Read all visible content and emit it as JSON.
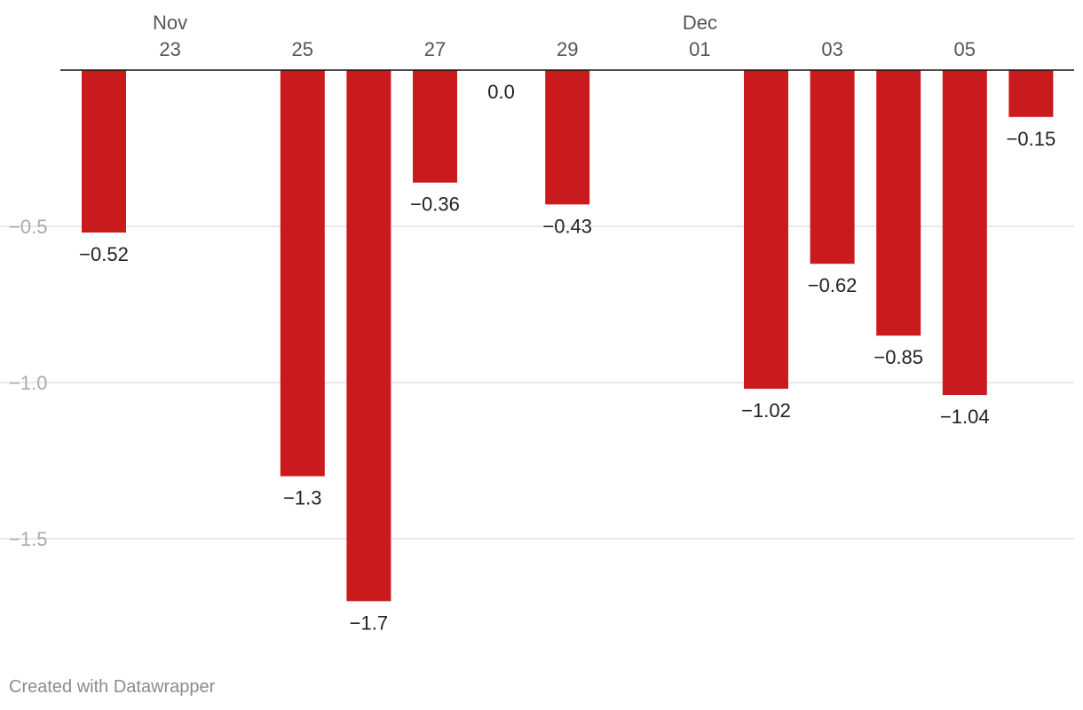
{
  "chart_data": {
    "type": "bar",
    "categories": [
      "Nov 22",
      "Nov 23",
      "Nov 24",
      "Nov 25",
      "Nov 26",
      "Nov 27",
      "Nov 28",
      "Nov 29",
      "Nov 30",
      "Dec 01",
      "Dec 02",
      "Dec 03",
      "Dec 04",
      "Dec 05",
      "Dec 06"
    ],
    "values": [
      -0.52,
      null,
      null,
      -1.3,
      -1.7,
      -0.36,
      0.0,
      -0.43,
      null,
      null,
      -1.02,
      -0.62,
      -0.85,
      -1.04,
      -0.15
    ],
    "value_labels": [
      "−0.52",
      "",
      "",
      "−1.3",
      "−1.7",
      "−0.36",
      "0.0",
      "−0.43",
      "",
      "",
      "−1.02",
      "−0.62",
      "−0.85",
      "−1.04",
      "−0.15"
    ],
    "x_tick_labels": [
      {
        "category_index": 1,
        "day": "23",
        "month": "Nov"
      },
      {
        "category_index": 3,
        "day": "25",
        "month": ""
      },
      {
        "category_index": 5,
        "day": "27",
        "month": ""
      },
      {
        "category_index": 7,
        "day": "29",
        "month": ""
      },
      {
        "category_index": 9,
        "day": "01",
        "month": "Dec"
      },
      {
        "category_index": 11,
        "day": "03",
        "month": ""
      },
      {
        "category_index": 13,
        "day": "05",
        "month": ""
      }
    ],
    "y_ticks": [
      {
        "value": -0.5,
        "label": "−0.5"
      },
      {
        "value": -1.0,
        "label": "−1.0"
      },
      {
        "value": -1.5,
        "label": "−1.5"
      }
    ],
    "ylim": [
      -1.7,
      0
    ],
    "x_axis_position": "top",
    "grid": true,
    "bar_color": "#c91b1e",
    "title": "",
    "xlabel": "",
    "ylabel": ""
  },
  "footer": {
    "credit": "Created with Datawrapper"
  }
}
